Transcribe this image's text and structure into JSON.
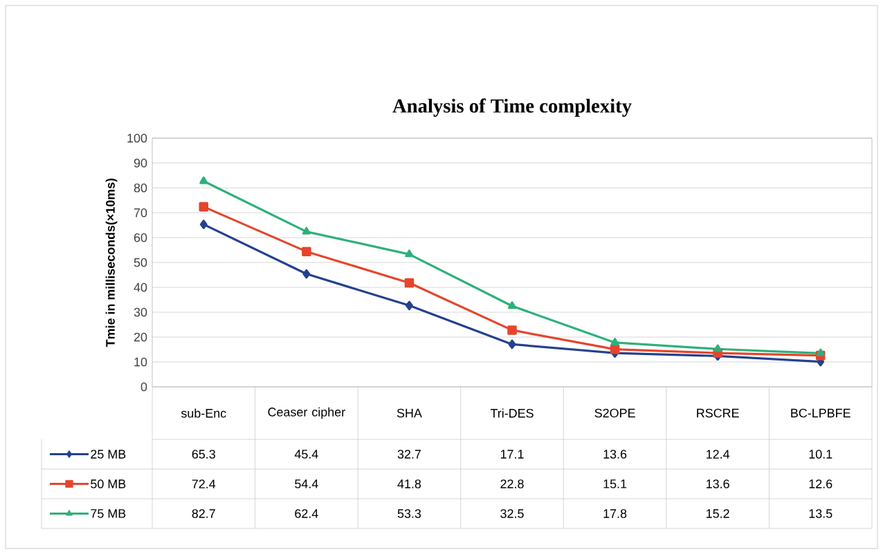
{
  "chart_data": {
    "type": "line",
    "title": "Analysis of Time complexity",
    "ylabel": "Tmie in milliseconds(×10ms)",
    "categories": [
      "sub-Enc",
      "Ceaser cipher",
      "SHA",
      "Tri-DES",
      "S2OPE",
      "RSCRE",
      "BC-LPBFE"
    ],
    "series": [
      {
        "name": "25 MB",
        "color": "#23418f",
        "marker": "diamond",
        "values": [
          65.3,
          45.4,
          32.7,
          17.1,
          13.6,
          12.4,
          10.1
        ]
      },
      {
        "name": "50 MB",
        "color": "#e5452c",
        "marker": "square",
        "values": [
          72.4,
          54.4,
          41.8,
          22.8,
          15.1,
          13.6,
          12.6
        ]
      },
      {
        "name": "75 MB",
        "color": "#2db07a",
        "marker": "triangle",
        "values": [
          82.7,
          62.4,
          53.3,
          32.5,
          17.8,
          15.2,
          13.5
        ]
      }
    ],
    "ylim": [
      0,
      100
    ],
    "yticks": [
      0,
      10,
      20,
      30,
      40,
      50,
      60,
      70,
      80,
      90,
      100
    ],
    "grid": true,
    "legend": "bottom",
    "data_labels": true
  }
}
